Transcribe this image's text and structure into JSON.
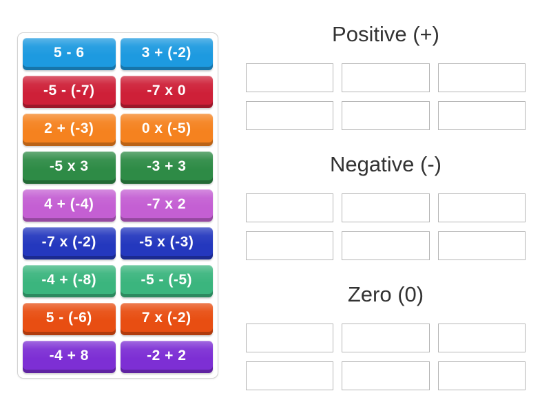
{
  "palette": {
    "background": "#ffffff",
    "tile_text": "#ffffff",
    "header_text": "#333333",
    "slot_border": "#b5b5b5",
    "panel_border": "#d2d2d2",
    "tile_colors": {
      "blue": "#1d9ae0",
      "crimson": "#ce2038",
      "orange": "#f5821f",
      "green": "#2e8b46",
      "orchid": "#c45fd3",
      "dark_blue": "#2438be",
      "sea_green": "#3bb57e",
      "orange_red": "#e84e12",
      "violet": "#7d2fd4"
    }
  },
  "tiles": [
    {
      "label": "5 - 6",
      "color": "#1d9ae0"
    },
    {
      "label": "3 + (-2)",
      "color": "#1d9ae0"
    },
    {
      "label": "-5 - (-7)",
      "color": "#ce2038"
    },
    {
      "label": "-7 x 0",
      "color": "#ce2038"
    },
    {
      "label": "2 + (-3)",
      "color": "#f5821f"
    },
    {
      "label": "0 x (-5)",
      "color": "#f5821f"
    },
    {
      "label": "-5 x 3",
      "color": "#2e8b46"
    },
    {
      "label": "-3 + 3",
      "color": "#2e8b46"
    },
    {
      "label": "4 + (-4)",
      "color": "#c45fd3"
    },
    {
      "label": "-7 x 2",
      "color": "#c45fd3"
    },
    {
      "label": "-7 x (-2)",
      "color": "#2438be"
    },
    {
      "label": "-5 x (-3)",
      "color": "#2438be"
    },
    {
      "label": "-4 + (-8)",
      "color": "#3bb57e"
    },
    {
      "label": "-5 - (-5)",
      "color": "#3bb57e"
    },
    {
      "label": "5 - (-6)",
      "color": "#e84e12"
    },
    {
      "label": "7 x (-2)",
      "color": "#e84e12"
    },
    {
      "label": "-4 + 8",
      "color": "#7d2fd4"
    },
    {
      "label": "-2 + 2",
      "color": "#7d2fd4"
    }
  ],
  "groups": [
    {
      "id": "positive",
      "title": "Positive (+)",
      "slot_count": 6
    },
    {
      "id": "negative",
      "title": "Negative (-)",
      "slot_count": 6
    },
    {
      "id": "zero",
      "title": "Zero (0)",
      "slot_count": 6
    }
  ]
}
